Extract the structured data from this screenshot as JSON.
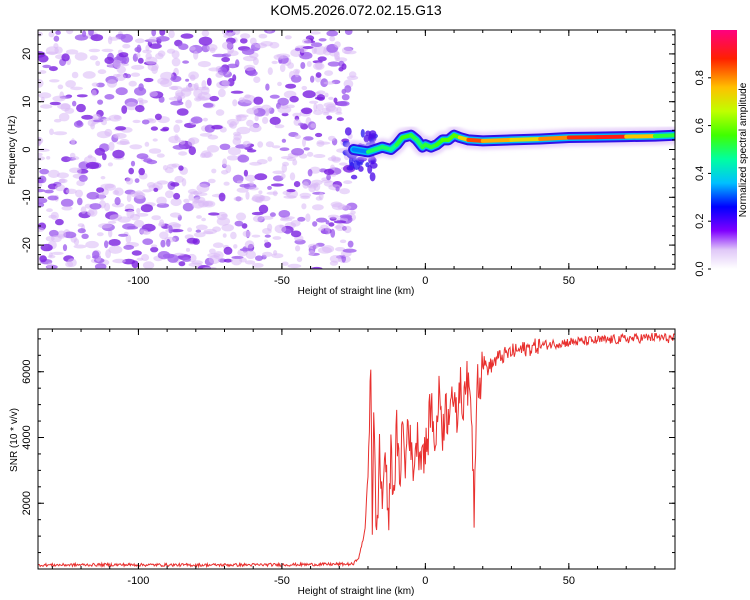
{
  "title": "KOM5.2026.072.02.15.G13",
  "chart_data": [
    {
      "type": "heatmap",
      "xlabel": "Height of straight line (km)",
      "ylabel": "Frequency (Hz)",
      "xlim": [
        -135,
        87
      ],
      "ylim": [
        -25,
        25
      ],
      "xticks": [
        -100,
        -50,
        0,
        50
      ],
      "yticks": [
        -20,
        -10,
        0,
        10,
        20
      ],
      "noise_region": [
        -135,
        -25
      ],
      "ridge": {
        "x": [
          -25,
          -20,
          -15,
          -12,
          -10,
          -8,
          -5,
          -3,
          -1,
          0,
          2,
          4,
          6,
          8,
          10,
          12,
          15,
          20,
          30,
          40,
          50,
          60,
          70,
          80,
          87
        ],
        "y": [
          0,
          -0.5,
          0.5,
          0,
          1,
          2.5,
          3,
          2,
          0.5,
          1,
          0.5,
          1,
          2,
          2,
          3,
          2.5,
          2,
          1.8,
          2,
          2.2,
          2.5,
          2.6,
          2.7,
          2.8,
          3
        ],
        "amplitude": [
          0.2,
          0.45,
          0.55,
          0.45,
          0.5,
          0.55,
          0.55,
          0.5,
          0.5,
          0.55,
          0.5,
          0.55,
          0.55,
          0.6,
          0.55,
          0.6,
          0.85,
          0.85,
          0.7,
          0.75,
          0.85,
          0.9,
          0.9,
          0.6,
          0.45
        ]
      },
      "colorbar": {
        "label": "Normalized spectral amplitude",
        "ticks": [
          0.0,
          0.2,
          0.4,
          0.6,
          0.8
        ],
        "range": [
          0,
          1
        ]
      }
    },
    {
      "type": "line",
      "xlabel": "Height of straight line (km)",
      "ylabel": "SNR (10 * v/v)",
      "xlim": [
        -135,
        87
      ],
      "ylim": [
        0,
        7300
      ],
      "xticks": [
        -100,
        -50,
        0,
        50
      ],
      "yticks": [
        2000,
        4000,
        6000
      ],
      "series": [
        {
          "color": "#e8302e",
          "x": [
            -135,
            -110,
            -80,
            -50,
            -25,
            -23,
            -21,
            -20,
            -19,
            -18.5,
            -18,
            -17,
            -16,
            -15,
            -14,
            -13,
            -12,
            -11,
            -10,
            -9,
            -8,
            -7,
            -6,
            -5,
            -4,
            -3,
            -2,
            -1,
            0,
            1,
            2,
            3,
            4,
            5,
            6,
            7,
            8,
            9,
            10,
            11,
            12,
            13,
            14,
            15,
            16,
            17,
            18,
            19,
            20,
            22,
            25,
            30,
            35,
            40,
            50,
            60,
            70,
            80,
            87
          ],
          "y": [
            120,
            130,
            120,
            130,
            150,
            400,
            1200,
            3000,
            6400,
            1500,
            4500,
            800,
            3500,
            2000,
            3800,
            1200,
            3500,
            2400,
            4200,
            2600,
            4500,
            3000,
            4800,
            3400,
            3200,
            4000,
            3600,
            3700,
            3500,
            4100,
            5200,
            3800,
            4400,
            5500,
            4200,
            4900,
            4600,
            5800,
            4800,
            4500,
            5700,
            4900,
            6000,
            5300,
            5100,
            1800,
            6200,
            5600,
            6300,
            6100,
            6400,
            6600,
            6700,
            6800,
            6900,
            6950,
            7000,
            7050,
            7000
          ]
        }
      ]
    }
  ]
}
